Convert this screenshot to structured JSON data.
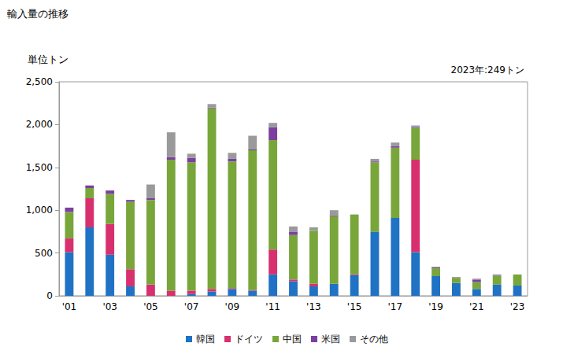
{
  "chart_data": {
    "type": "bar",
    "title": "輸入量の推移",
    "ylabel": "単位トン",
    "annotation": "2023年:249トン",
    "stacked": true,
    "grid": false,
    "legend": "bottom",
    "categories": [
      "'01",
      null,
      "'03",
      null,
      "'05",
      null,
      "'07",
      null,
      "'09",
      null,
      "'11",
      null,
      "'13",
      null,
      "'15",
      null,
      "'17",
      null,
      "'19",
      null,
      "'21",
      null,
      "'23"
    ],
    "ylim": [
      0,
      2500
    ],
    "yticks": [
      0,
      500,
      {
        "value": 1000,
        "label": "1,000"
      },
      {
        "value": 1500,
        "label": "1,500"
      },
      {
        "value": 2000,
        "label": "2,000"
      },
      {
        "value": 2500,
        "label": "2,500"
      }
    ],
    "series": [
      {
        "name": "韓国",
        "color": "#1f72c4",
        "values": [
          510,
          800,
          480,
          110,
          0,
          0,
          20,
          50,
          80,
          60,
          250,
          170,
          110,
          140,
          240,
          750,
          910,
          510,
          230,
          150,
          80,
          130,
          120
        ]
      },
      {
        "name": "ドイツ",
        "color": "#d8306e",
        "values": [
          160,
          340,
          360,
          200,
          130,
          60,
          40,
          30,
          10,
          10,
          290,
          20,
          30,
          0,
          10,
          0,
          0,
          1080,
          0,
          0,
          0,
          0,
          0
        ]
      },
      {
        "name": "中国",
        "color": "#78a63a",
        "values": [
          310,
          120,
          350,
          790,
          990,
          1530,
          1500,
          2110,
          1480,
          1630,
          1280,
          520,
          620,
          790,
          700,
          810,
          820,
          370,
          90,
          60,
          80,
          100,
          129
        ]
      },
      {
        "name": "米国",
        "color": "#7b3fa0",
        "values": [
          50,
          30,
          40,
          20,
          20,
          30,
          50,
          10,
          30,
          10,
          150,
          40,
          0,
          10,
          0,
          10,
          20,
          10,
          10,
          0,
          30,
          0,
          0
        ]
      },
      {
        "name": "その他",
        "color": "#9a9a9a",
        "values": [
          0,
          0,
          0,
          0,
          160,
          290,
          50,
          40,
          70,
          160,
          50,
          60,
          40,
          60,
          0,
          30,
          40,
          20,
          10,
          10,
          10,
          20,
          0
        ]
      }
    ]
  }
}
